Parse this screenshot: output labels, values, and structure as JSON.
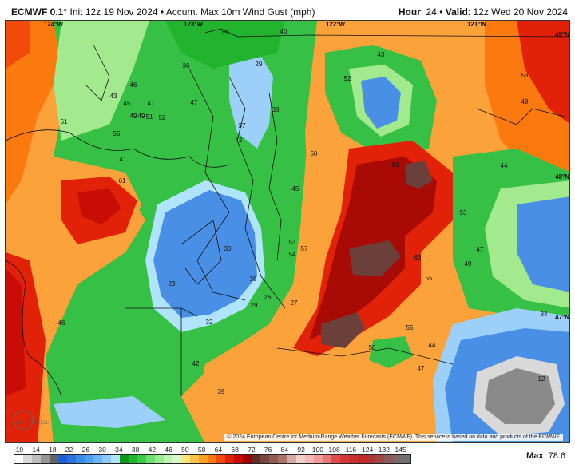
{
  "header": {
    "model": "ECMWF 0.1",
    "degree": "°",
    "init": " Init 12z 19 Nov 2024 • Accum. Max 10m Wind Gust (mph)",
    "hour_label": "Hour",
    "hour": ": 24 • ",
    "valid_label": "Valid",
    "valid": ": 12z Wed 20 Nov 2024"
  },
  "map": {
    "longitudes": [
      "124°W",
      "123°W",
      "122°W",
      "121°W"
    ],
    "latitudes": [
      "49°N",
      "48°N",
      "47°N"
    ],
    "values": [
      "39",
      "40",
      "43",
      "52",
      "53",
      "49",
      "36",
      "29",
      "46",
      "43",
      "45",
      "47",
      "47",
      "38",
      "61",
      "49",
      "49",
      "51",
      "52",
      "55",
      "37",
      "42",
      "41",
      "50",
      "63",
      "44",
      "61",
      "45",
      "53",
      "30",
      "53",
      "54",
      "57",
      "63",
      "47",
      "49",
      "55",
      "29",
      "38",
      "26",
      "27",
      "29",
      "32",
      "46",
      "55",
      "50",
      "44",
      "47",
      "42",
      "39",
      "12",
      "34"
    ],
    "credit": "© 2024 European Centre for Medium-Range Weather Forecasts (ECMWF). This service is based on data and products of the ECMWF.",
    "watermark": "WeatherBELL"
  },
  "legend": {
    "labels": [
      "10",
      "14",
      "18",
      "22",
      "26",
      "30",
      "34",
      "38",
      "42",
      "46",
      "50",
      "58",
      "64",
      "68",
      "72",
      "76",
      "84",
      "92",
      "100",
      "108",
      "116",
      "124",
      "132",
      "145"
    ],
    "colors": [
      "#ffffff",
      "#d9d9d9",
      "#bdbdbd",
      "#969696",
      "#636363",
      "#1f5fd6",
      "#2b74e0",
      "#3b8ae8",
      "#4f9ff0",
      "#6ab4f5",
      "#8cc8f8",
      "#b0e4fa",
      "#0f9a1e",
      "#22b42e",
      "#3bcc45",
      "#6ee070",
      "#9aec92",
      "#bdf4b0",
      "#d6f8c8",
      "#fde57a",
      "#fdc24a",
      "#fca020",
      "#fb7a10",
      "#f14a0a",
      "#e22208",
      "#c80c06",
      "#a00000",
      "#5e2e2a",
      "#7a4540",
      "#925a52",
      "#a87468",
      "#d8aaa5",
      "#f0d0c8",
      "#f4b8b4",
      "#ee9a98",
      "#e87878",
      "#dd4d4d",
      "#d63838",
      "#c83030",
      "#c22a2a",
      "#b03434",
      "#a04848",
      "#8a5a5a",
      "#7a6a6a",
      "#707070"
    ],
    "max_label": "Max",
    "max_value": ": 78.6"
  },
  "colors": {
    "orange": "#fba23a",
    "green": "#36c046",
    "light_green": "#a3ea8f",
    "blue": "#4a8fe6",
    "light_blue": "#9cd0f8",
    "red": "#e2260c",
    "dark_red": "#a80a06",
    "brown": "#6b403a",
    "gray": "#8a8a8a"
  }
}
